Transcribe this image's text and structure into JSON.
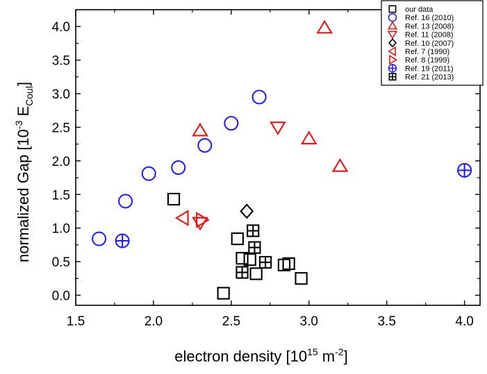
{
  "chart_data": {
    "type": "scatter",
    "xlabel": {
      "main": "electron density [10",
      "sup": "15",
      "mid": " m",
      "sup2": "-2",
      "end": "]"
    },
    "ylabel": {
      "main": "normalized Gap [10",
      "sup": "-3",
      "mid": " E",
      "sub": "Coul",
      "end": "]"
    },
    "xlim": [
      1.5,
      4.1
    ],
    "ylim": [
      -0.15,
      4.25
    ],
    "xticks": [
      "1.5",
      "2.0",
      "2.5",
      "3.0",
      "3.5",
      "4.0"
    ],
    "yticks": [
      "0.0",
      "0.5",
      "1.0",
      "1.5",
      "2.0",
      "2.5",
      "3.0",
      "3.5",
      "4.0"
    ],
    "grid": false,
    "legend_position": "top-right",
    "series": [
      {
        "name": "our data",
        "marker": "square",
        "color": "#000000",
        "points": [
          [
            2.13,
            1.43
          ],
          [
            2.45,
            0.03
          ],
          [
            2.54,
            0.84
          ],
          [
            2.57,
            0.55
          ],
          [
            2.62,
            0.53
          ],
          [
            2.66,
            0.32
          ],
          [
            2.84,
            0.45
          ],
          [
            2.87,
            0.47
          ],
          [
            2.95,
            0.25
          ]
        ]
      },
      {
        "name": "Ref. 16 (2010)",
        "marker": "circle",
        "color": "#1f1fff",
        "points": [
          [
            1.65,
            0.84
          ],
          [
            1.82,
            1.4
          ],
          [
            1.97,
            1.81
          ],
          [
            2.16,
            1.9
          ],
          [
            2.33,
            2.23
          ],
          [
            2.5,
            2.56
          ],
          [
            2.68,
            2.95
          ]
        ]
      },
      {
        "name": "Ref. 13 (2008)",
        "marker": "triangle-up",
        "color": "#ee1111",
        "points": [
          [
            2.3,
            2.45
          ],
          [
            3.0,
            2.33
          ],
          [
            3.1,
            3.98
          ],
          [
            3.2,
            1.92
          ]
        ]
      },
      {
        "name": "Ref. 11 (2008)",
        "marker": "triangle-down",
        "color": "#ee1111",
        "points": [
          [
            2.8,
            2.5
          ],
          [
            2.3,
            1.08
          ]
        ]
      },
      {
        "name": "Ref. 10 (2007)",
        "marker": "diamond",
        "color": "#000000",
        "points": [
          [
            2.6,
            1.25
          ]
        ]
      },
      {
        "name": "Ref.   7 (1990)",
        "marker": "triangle-left",
        "color": "#ee1111",
        "points": [
          [
            2.19,
            1.15
          ]
        ]
      },
      {
        "name": "Ref.   8 (1999)",
        "marker": "triangle-right",
        "color": "#ee1111",
        "points": [
          [
            2.31,
            1.12
          ]
        ]
      },
      {
        "name": "Ref. 19 (2011)",
        "marker": "circle-plus",
        "color": "#1f1fff",
        "points": [
          [
            1.8,
            0.81
          ],
          [
            4.0,
            1.86
          ]
        ]
      },
      {
        "name": "Ref. 21 (2013)",
        "marker": "square-plus",
        "color": "#000000",
        "points": [
          [
            2.57,
            0.34
          ],
          [
            2.64,
            0.96
          ],
          [
            2.65,
            0.71
          ],
          [
            2.72,
            0.49
          ]
        ]
      }
    ]
  }
}
